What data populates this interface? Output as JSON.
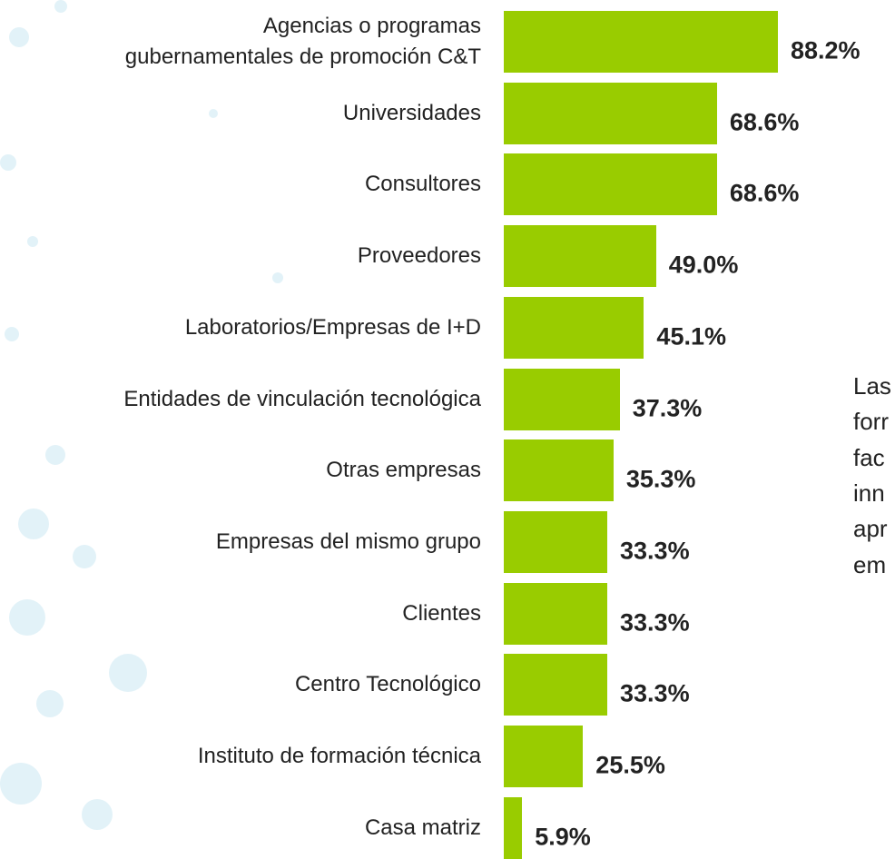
{
  "chart_data": {
    "type": "bar",
    "orientation": "horizontal",
    "color": "#99cc00",
    "categories": [
      "Agencias o programas\ngubernamentales de promoción C&T",
      "Universidades",
      "Consultores",
      "Proveedores",
      "Laboratorios/Empresas de I+D",
      "Entidades de vinculación tecnológica",
      "Otras empresas",
      "Empresas del mismo grupo",
      "Clientes",
      "Centro Tecnológico",
      "Instituto de formación técnica",
      "Casa matriz"
    ],
    "values": [
      88.2,
      68.6,
      68.6,
      49.0,
      45.1,
      37.3,
      35.3,
      33.3,
      33.3,
      33.3,
      25.5,
      5.9
    ],
    "value_labels": [
      "88.2%",
      "68.6%",
      "68.6%",
      "49.0%",
      "45.1%",
      "37.3%",
      "35.3%",
      "33.3%",
      "33.3%",
      "33.3%",
      "25.5%",
      "5.9%"
    ],
    "annotation": [
      "Las",
      "forr",
      "fac",
      "inn",
      "apr",
      "em"
    ]
  }
}
